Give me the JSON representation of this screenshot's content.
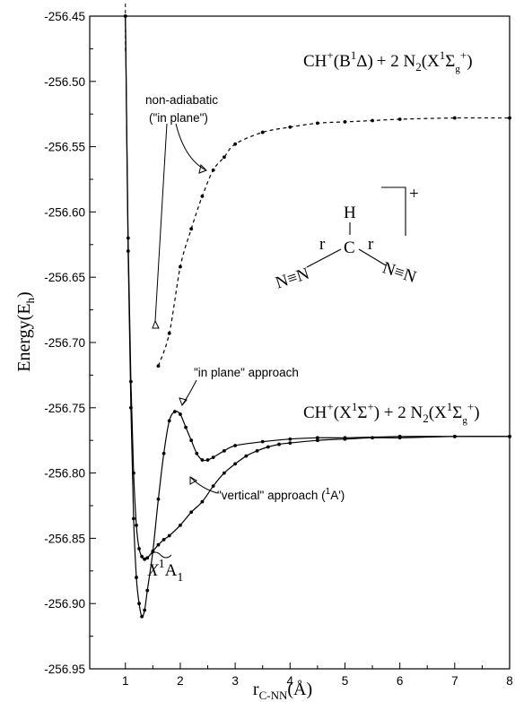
{
  "chart_data": {
    "type": "line",
    "xlabel_main": "r",
    "xlabel_sub": "C-NN",
    "xlabel_unit": "(Å)",
    "ylabel_main": "Energy(E",
    "ylabel_sub": "h",
    "ylabel_close": ")",
    "xlim": [
      0.35,
      8
    ],
    "ylim": [
      -256.95,
      -256.45
    ],
    "xticks": [
      1,
      2,
      3,
      4,
      5,
      6,
      7,
      8
    ],
    "xtick_labels": [
      "1",
      "2",
      "3",
      "4",
      "5",
      "6",
      "7",
      "8"
    ],
    "yticks": [
      -256.95,
      -256.9,
      -256.85,
      -256.8,
      -256.75,
      -256.7,
      -256.65,
      -256.6,
      -256.55,
      -256.5,
      -256.45
    ],
    "ytick_labels": [
      "-256.95",
      "-256.90",
      "-256.85",
      "-256.80",
      "-256.75",
      "-256.70",
      "-256.65",
      "-256.60",
      "-256.55",
      "-256.50",
      "-256.45"
    ],
    "vertical_reference_x": 1.0,
    "series": [
      {
        "id": "in-plane-solid",
        "style": "solid",
        "x": [
          1.0,
          1.05,
          1.1,
          1.15,
          1.2,
          1.25,
          1.3,
          1.35,
          1.4,
          1.5,
          1.6,
          1.7,
          1.8,
          1.9,
          2.0,
          2.1,
          2.2,
          2.3,
          2.4,
          2.5,
          2.6,
          2.8,
          3.0,
          3.5,
          4.0,
          4.5,
          5.0,
          6.0,
          7.0,
          8.0
        ],
        "y": [
          -256.45,
          -256.63,
          -256.75,
          -256.835,
          -256.88,
          -256.9,
          -256.91,
          -256.905,
          -256.89,
          -256.86,
          -256.82,
          -256.785,
          -256.76,
          -256.753,
          -256.755,
          -256.765,
          -256.775,
          -256.785,
          -256.79,
          -256.79,
          -256.788,
          -256.783,
          -256.779,
          -256.776,
          -256.774,
          -256.773,
          -256.773,
          -256.772,
          -256.772,
          -256.772
        ]
      },
      {
        "id": "vertical-approach",
        "style": "solid",
        "x": [
          1.0,
          1.05,
          1.1,
          1.15,
          1.2,
          1.25,
          1.3,
          1.35,
          1.4,
          1.5,
          1.6,
          1.7,
          1.8,
          2.0,
          2.2,
          2.4,
          2.6,
          2.8,
          3.0,
          3.2,
          3.4,
          3.6,
          3.8,
          4.0,
          4.5,
          5.0,
          5.5,
          6.0,
          7.0,
          8.0
        ],
        "y": [
          -256.45,
          -256.62,
          -256.73,
          -256.8,
          -256.84,
          -256.858,
          -256.864,
          -256.866,
          -256.865,
          -256.86,
          -256.855,
          -256.851,
          -256.848,
          -256.84,
          -256.83,
          -256.822,
          -256.81,
          -256.8,
          -256.793,
          -256.787,
          -256.783,
          -256.78,
          -256.778,
          -256.777,
          -256.775,
          -256.774,
          -256.773,
          -256.773,
          -256.772,
          -256.772
        ]
      },
      {
        "id": "non-adiabatic",
        "style": "dashed",
        "x": [
          1.6,
          1.8,
          2.0,
          2.2,
          2.4,
          2.6,
          2.8,
          3.0,
          3.5,
          4.0,
          4.5,
          5.0,
          5.5,
          6.0,
          7.0,
          8.0
        ],
        "y": [
          -256.718,
          -256.693,
          -256.642,
          -256.613,
          -256.588,
          -256.568,
          -256.558,
          -256.548,
          -256.539,
          -256.535,
          -256.532,
          -256.531,
          -256.53,
          -256.529,
          -256.528,
          -256.528
        ]
      }
    ],
    "annotations": {
      "non_adiabatic_line1": "non-adiabatic",
      "non_adiabatic_line2": "(\"in plane\")",
      "in_plane_approach": "\"in plane\" approach",
      "vertical_approach_text": "\"vertical\" approach (",
      "vertical_approach_sup": "1",
      "vertical_approach_term": "A')",
      "ground_state_tilde": "X",
      "ground_state_sup": "1",
      "ground_state_term": "A",
      "ground_state_sub": "1"
    },
    "asymptotes": {
      "upper": {
        "ch": "CH",
        "charge": "+",
        "state": "(B",
        "mult": "1",
        "sym": "Δ)",
        "plus": "+ 2 N",
        "n2sub": "2",
        "n2state": "(X",
        "n2mult": "1",
        "n2sym": "Σ",
        "n2sub2": "g",
        "n2charge": "+",
        "close": ")"
      },
      "lower": {
        "ch": "CH",
        "charge": "+",
        "state": "(X",
        "mult": "1",
        "sym": "Σ",
        "symsup": "+",
        "plus": ") + 2 N",
        "n2sub": "2",
        "n2state": "(X",
        "n2mult": "1",
        "n2sym": "Σ",
        "n2sub2": "g",
        "n2charge": "+",
        "close": ")"
      }
    },
    "molecule": {
      "h": "H",
      "c": "C",
      "r_left": "r",
      "r_right": "r",
      "n2_left": "N≡N",
      "n2_right": "N≡N",
      "charge": "+"
    },
    "grid": false,
    "legend": "none"
  }
}
